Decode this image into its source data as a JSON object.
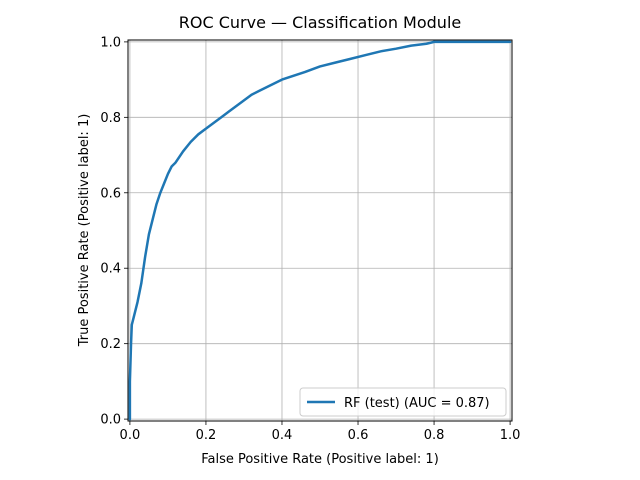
{
  "chart_data": {
    "type": "line",
    "title": "ROC Curve — Classification Module",
    "xlabel": "False Positive Rate (Positive label: 1)",
    "ylabel": "True Positive Rate (Positive label: 1)",
    "xlim": [
      0,
      1
    ],
    "ylim": [
      0,
      1
    ],
    "x_ticks": [
      0.0,
      0.2,
      0.4,
      0.6,
      0.8,
      1.0
    ],
    "y_ticks": [
      0.0,
      0.2,
      0.4,
      0.6,
      0.8,
      1.0
    ],
    "x_tick_labels": [
      "0.0",
      "0.2",
      "0.4",
      "0.6",
      "0.8",
      "1.0"
    ],
    "y_tick_labels": [
      "0.0",
      "0.2",
      "0.4",
      "0.6",
      "0.8",
      "1.0"
    ],
    "grid": true,
    "legend_position": "lower-right",
    "series": [
      {
        "name": "RF (test) (AUC = 0.87)",
        "color": "#1f77b4",
        "x": [
          0.0,
          0.0,
          0.003,
          0.005,
          0.01,
          0.02,
          0.03,
          0.04,
          0.05,
          0.06,
          0.07,
          0.08,
          0.09,
          0.1,
          0.11,
          0.12,
          0.14,
          0.16,
          0.18,
          0.2,
          0.22,
          0.24,
          0.26,
          0.28,
          0.3,
          0.32,
          0.34,
          0.36,
          0.38,
          0.4,
          0.43,
          0.46,
          0.5,
          0.54,
          0.58,
          0.62,
          0.66,
          0.7,
          0.74,
          0.78,
          0.8,
          0.85,
          0.9,
          1.0
        ],
        "y": [
          0.0,
          0.1,
          0.2,
          0.25,
          0.27,
          0.31,
          0.36,
          0.43,
          0.49,
          0.53,
          0.57,
          0.6,
          0.625,
          0.65,
          0.67,
          0.68,
          0.71,
          0.735,
          0.755,
          0.77,
          0.785,
          0.8,
          0.815,
          0.83,
          0.845,
          0.86,
          0.87,
          0.88,
          0.89,
          0.9,
          0.91,
          0.92,
          0.935,
          0.945,
          0.955,
          0.965,
          0.975,
          0.982,
          0.99,
          0.995,
          1.0,
          1.0,
          1.0,
          1.0
        ]
      }
    ]
  }
}
